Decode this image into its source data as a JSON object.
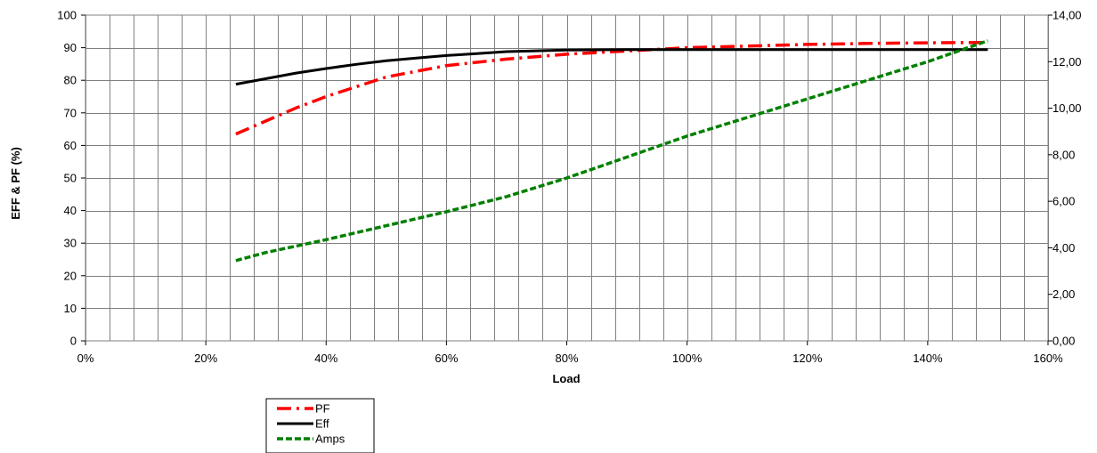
{
  "chart_data": {
    "type": "line",
    "xlabel": "Load",
    "ylabel": "EFF & PF (%)",
    "y2label": "",
    "x_ticks": [
      "0%",
      "20%",
      "40%",
      "60%",
      "80%",
      "100%",
      "120%",
      "140%",
      "160%"
    ],
    "y_ticks": [
      "0",
      "10",
      "20",
      "30",
      "40",
      "50",
      "60",
      "70",
      "80",
      "90",
      "100"
    ],
    "y2_ticks": [
      "0,00",
      "2,00",
      "4,00",
      "6,00",
      "8,00",
      "10,00",
      "12,00",
      "14,00"
    ],
    "xlim": [
      0,
      160
    ],
    "ylim": [
      0,
      100
    ],
    "y2lim": [
      0,
      14
    ],
    "grid": true,
    "legend_position": "bottom-left",
    "series": [
      {
        "name": "PF",
        "axis": "left",
        "color": "#ff0000",
        "style": "dash-dot",
        "x": [
          25,
          30,
          35,
          40,
          45,
          50,
          60,
          70,
          80,
          90,
          100,
          110,
          120,
          130,
          140,
          150
        ],
        "values": [
          63.5,
          67.5,
          71.5,
          75,
          78,
          81,
          84.5,
          86.5,
          88,
          89,
          90,
          90.5,
          91,
          91.3,
          91.5,
          91.6
        ]
      },
      {
        "name": "Eff",
        "axis": "left",
        "color": "#000000",
        "style": "solid",
        "x": [
          25,
          30,
          35,
          40,
          45,
          50,
          55,
          60,
          65,
          70,
          80,
          90,
          100,
          110,
          120,
          130,
          140,
          150
        ],
        "values": [
          78.8,
          80.5,
          82.2,
          83.6,
          84.9,
          86,
          86.8,
          87.6,
          88.2,
          88.8,
          89.3,
          89.4,
          89.4,
          89.4,
          89.4,
          89.4,
          89.4,
          89.4
        ]
      },
      {
        "name": "Amps",
        "axis": "right",
        "color": "#008000",
        "style": "dash",
        "x": [
          25,
          30,
          40,
          50,
          60,
          70,
          80,
          90,
          100,
          110,
          120,
          130,
          140,
          150
        ],
        "values": [
          3.45,
          3.8,
          4.35,
          4.95,
          5.55,
          6.2,
          7.0,
          7.9,
          8.8,
          9.6,
          10.4,
          11.2,
          12.0,
          12.9
        ]
      }
    ]
  }
}
